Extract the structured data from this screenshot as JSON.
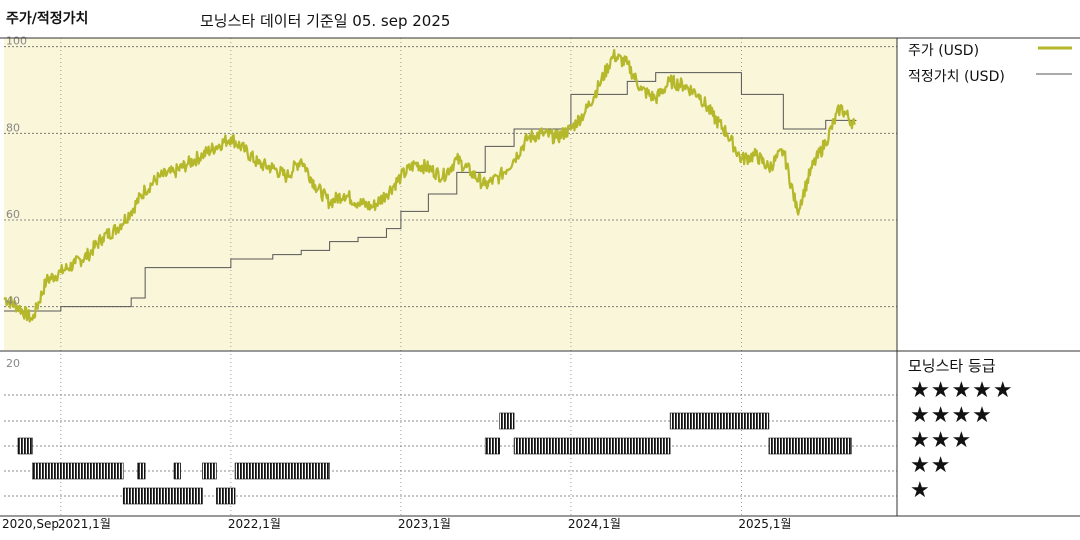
{
  "header": {
    "title": "주가/적정가치",
    "subtitle": "모닝스타 데이터 기준일 05. sep 2025"
  },
  "legend": {
    "price_label": "주가 (USD)",
    "fair_label": "적정가치 (USD)",
    "price_color": "#b5b82a",
    "fair_color": "#555555"
  },
  "rating": {
    "title": "모닝스타 등급",
    "stars": [
      "★★★★★",
      "★★★★",
      "★★★",
      "★★",
      "★"
    ]
  },
  "chart_data": [
    {
      "type": "line",
      "ylim": [
        30,
        102
      ],
      "y_ticks": [
        "100",
        "80",
        "60",
        "40"
      ],
      "x_ticks": [
        "2020,Sep",
        "2021,1월",
        "2022,1월",
        "2023,1월",
        "2024,1월",
        "2025,1월"
      ],
      "grid": true,
      "legend_position": "top-right",
      "series": [
        {
          "name": "주가 (USD)",
          "color": "#b5b82a",
          "x": [
            "2020-09-01",
            "2020-10-01",
            "2020-11-01",
            "2020-12-01",
            "2021-01-01",
            "2021-02-01",
            "2021-03-01",
            "2021-04-01",
            "2021-05-01",
            "2021-06-01",
            "2021-07-01",
            "2021-08-01",
            "2021-09-01",
            "2021-10-01",
            "2021-11-01",
            "2021-12-01",
            "2022-01-01",
            "2022-02-01",
            "2022-03-01",
            "2022-04-01",
            "2022-05-01",
            "2022-06-01",
            "2022-07-01",
            "2022-08-01",
            "2022-09-01",
            "2022-10-01",
            "2022-11-01",
            "2022-12-01",
            "2023-01-01",
            "2023-02-01",
            "2023-03-01",
            "2023-04-01",
            "2023-05-01",
            "2023-06-01",
            "2023-07-01",
            "2023-08-01",
            "2023-09-01",
            "2023-10-01",
            "2023-11-01",
            "2023-12-01",
            "2024-01-01",
            "2024-02-01",
            "2024-03-01",
            "2024-04-01",
            "2024-05-01",
            "2024-06-01",
            "2024-07-01",
            "2024-08-01",
            "2024-09-01",
            "2024-10-01",
            "2024-11-01",
            "2024-12-01",
            "2025-01-01",
            "2025-02-01",
            "2025-03-01",
            "2025-04-01",
            "2025-05-01",
            "2025-06-01",
            "2025-07-01",
            "2025-08-01",
            "2025-09-01"
          ],
          "values": [
            42,
            40,
            37,
            46,
            48,
            50,
            52,
            56,
            58,
            62,
            67,
            70,
            71,
            73,
            75,
            77,
            79,
            76,
            73,
            72,
            70,
            74,
            68,
            64,
            66,
            64,
            63,
            66,
            70,
            73,
            72,
            70,
            74,
            71,
            68,
            70,
            74,
            79,
            80,
            79,
            81,
            85,
            91,
            98,
            96,
            90,
            88,
            92,
            91,
            89,
            84,
            80,
            74,
            75,
            72,
            76,
            62,
            72,
            78,
            86,
            82
          ]
        },
        {
          "name": "적정가치 (USD)",
          "color": "#555555",
          "x": [
            "2020-09-01",
            "2020-12-01",
            "2021-01-01",
            "2021-02-01",
            "2021-06-01",
            "2021-07-01",
            "2021-12-01",
            "2022-01-01",
            "2022-04-01",
            "2022-06-01",
            "2022-08-01",
            "2022-10-01",
            "2022-12-01",
            "2023-01-01",
            "2023-03-01",
            "2023-05-01",
            "2023-07-01",
            "2023-09-01",
            "2023-10-01",
            "2023-12-01",
            "2024-01-01",
            "2024-05-01",
            "2024-07-01",
            "2024-11-01",
            "2025-01-01",
            "2025-04-01",
            "2025-06-01",
            "2025-07-01",
            "2025-09-01"
          ],
          "values": [
            39,
            39,
            40,
            40,
            42,
            49,
            49,
            51,
            52,
            53,
            55,
            56,
            58,
            62,
            66,
            71,
            77,
            81,
            81,
            81,
            89,
            92,
            94,
            94,
            89,
            81,
            81,
            83,
            83
          ]
        }
      ]
    },
    {
      "type": "bar",
      "name": "모닝스타 등급",
      "y_ticks": [
        "20"
      ],
      "categories": [
        "★★★★★",
        "★★★★",
        "★★★",
        "★★",
        "★"
      ],
      "periods": [
        {
          "rating": 3,
          "from": "2020-10-01",
          "to": "2020-11-01"
        },
        {
          "rating": 2,
          "from": "2020-11-01",
          "to": "2021-05-15"
        },
        {
          "rating": 1,
          "from": "2021-05-15",
          "to": "2021-11-01"
        },
        {
          "rating": 2,
          "from": "2021-06-15",
          "to": "2021-07-01"
        },
        {
          "rating": 2,
          "from": "2021-09-01",
          "to": "2021-09-15"
        },
        {
          "rating": 2,
          "from": "2021-11-01",
          "to": "2021-12-01"
        },
        {
          "rating": 1,
          "from": "2021-12-01",
          "to": "2022-01-10"
        },
        {
          "rating": 2,
          "from": "2022-01-10",
          "to": "2022-08-01"
        },
        {
          "rating": 3,
          "from": "2023-07-01",
          "to": "2023-08-01"
        },
        {
          "rating": 4,
          "from": "2023-08-01",
          "to": "2023-09-01"
        },
        {
          "rating": 3,
          "from": "2023-09-01",
          "to": "2024-08-01"
        },
        {
          "rating": 4,
          "from": "2024-08-01",
          "to": "2025-03-01"
        },
        {
          "rating": 3,
          "from": "2025-03-01",
          "to": "2025-08-25"
        }
      ]
    }
  ]
}
